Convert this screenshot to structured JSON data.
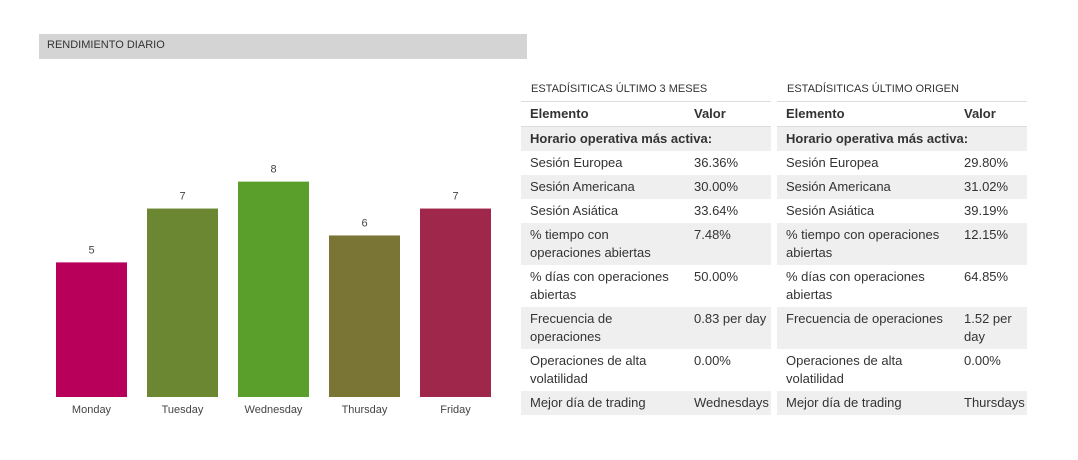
{
  "panel_title": "RENDIMIENTO DIARIO",
  "chart_data": {
    "type": "bar",
    "title": "",
    "xlabel": "",
    "ylabel": "",
    "categories": [
      "Monday",
      "Tuesday",
      "Wednesday",
      "Thursday",
      "Friday"
    ],
    "values": [
      5,
      7,
      8,
      6,
      7
    ],
    "colors": [
      "#b8005a",
      "#6b8731",
      "#5a9e2b",
      "#7a7535",
      "#a0274c"
    ],
    "ylim": [
      0,
      10.4
    ],
    "grid": false,
    "legend": "none"
  },
  "stats_3m": {
    "title": "ESTADÍSITICAS ÚLTIMO 3 MESES",
    "col1": "Elemento",
    "col2": "Valor",
    "section": "Horario operativa más activa:",
    "rows": [
      {
        "label": "Sesión Europea",
        "value": "36.36%"
      },
      {
        "label": "Sesión Americana",
        "value": "30.00%"
      },
      {
        "label": "Sesión Asiática",
        "value": "33.64%"
      },
      {
        "label": "% tiempo con operaciones abiertas",
        "value": "7.48%"
      },
      {
        "label": "% días con operaciones abiertas",
        "value": "50.00%"
      },
      {
        "label": "Frecuencia de operaciones",
        "value": "0.83 per day"
      },
      {
        "label": "Operaciones de alta volatilidad",
        "value": "0.00%"
      },
      {
        "label": "Mejor día de trading",
        "value": "Wednesdays"
      }
    ]
  },
  "stats_origin": {
    "title": "ESTADÍSITICAS ÚLTIMO ORIGEN",
    "col1": "Elemento",
    "col2": "Valor",
    "section": "Horario operativa más activa:",
    "rows": [
      {
        "label": "Sesión Europea",
        "value": "29.80%"
      },
      {
        "label": "Sesión Americana",
        "value": "31.02%"
      },
      {
        "label": "Sesión Asiática",
        "value": "39.19%"
      },
      {
        "label": "% tiempo con operaciones abiertas",
        "value": "12.15%"
      },
      {
        "label": "% días con operaciones abiertas",
        "value": "64.85%"
      },
      {
        "label": "Frecuencia de operaciones",
        "value": "1.52 per day"
      },
      {
        "label": "Operaciones de alta volatilidad",
        "value": "0.00%"
      },
      {
        "label": "Mejor día de trading",
        "value": "Thursdays"
      }
    ]
  }
}
